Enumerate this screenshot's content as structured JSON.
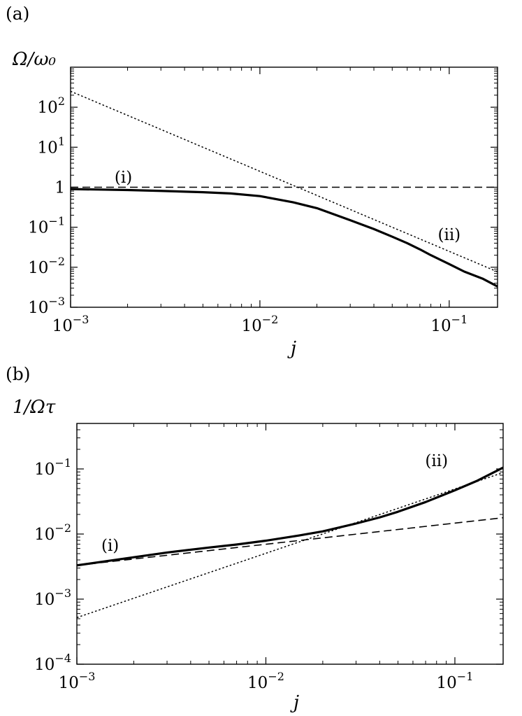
{
  "chart_data": [
    {
      "panel_label": "(a)",
      "type": "line",
      "ylabel": "Ω/ω₀",
      "xlabel": "j",
      "x_scale": "log",
      "y_scale": "log",
      "xlim": [
        0.001,
        0.18
      ],
      "ylim": [
        0.001,
        1000
      ],
      "grid": false,
      "x_ticks": [
        {
          "value": 0.001,
          "base": "10",
          "exp": "−3"
        },
        {
          "value": 0.01,
          "base": "10",
          "exp": "−2"
        },
        {
          "value": 0.1,
          "base": "10",
          "exp": "−1"
        }
      ],
      "y_ticks": [
        {
          "value": 0.001,
          "base": "10",
          "exp": "−3"
        },
        {
          "value": 0.01,
          "base": "10",
          "exp": "−2"
        },
        {
          "value": 0.1,
          "base": "10",
          "exp": "−1"
        },
        {
          "value": 1,
          "base": "1",
          "exp": ""
        },
        {
          "value": 10,
          "base": "10",
          "exp": "1"
        },
        {
          "value": 100,
          "base": "10",
          "exp": "2"
        }
      ],
      "annotations": [
        {
          "text": "(i)",
          "x": 0.0019,
          "y": 1.3
        },
        {
          "text": "(ii)",
          "x": 0.1,
          "y": 0.048
        }
      ],
      "series": [
        {
          "style": "solid",
          "x": [
            0.001,
            0.0015,
            0.002,
            0.003,
            0.005,
            0.007,
            0.01,
            0.015,
            0.02,
            0.03,
            0.04,
            0.05,
            0.06,
            0.07,
            0.08,
            0.1,
            0.12,
            0.15,
            0.18
          ],
          "y": [
            0.9,
            0.87,
            0.85,
            0.81,
            0.75,
            0.7,
            0.6,
            0.42,
            0.3,
            0.15,
            0.09,
            0.058,
            0.04,
            0.028,
            0.02,
            0.012,
            0.0078,
            0.0052,
            0.0033
          ]
        },
        {
          "style": "dashed",
          "x": [
            0.001,
            0.18
          ],
          "y": [
            1,
            1
          ]
        },
        {
          "style": "dotted",
          "x": [
            0.001,
            0.18
          ],
          "y": [
            250,
            0.0077
          ]
        }
      ]
    },
    {
      "panel_label": "(b)",
      "type": "line",
      "ylabel": "1/Ωτ",
      "xlabel": "j",
      "x_scale": "log",
      "y_scale": "log",
      "xlim": [
        0.001,
        0.18
      ],
      "ylim": [
        0.0001,
        0.5
      ],
      "grid": false,
      "x_ticks": [
        {
          "value": 0.001,
          "base": "10",
          "exp": "−3"
        },
        {
          "value": 0.01,
          "base": "10",
          "exp": "−2"
        },
        {
          "value": 0.1,
          "base": "10",
          "exp": "−1"
        }
      ],
      "y_ticks": [
        {
          "value": 0.0001,
          "base": "10",
          "exp": "−4"
        },
        {
          "value": 0.001,
          "base": "10",
          "exp": "−3"
        },
        {
          "value": 0.01,
          "base": "10",
          "exp": "−2"
        },
        {
          "value": 0.1,
          "base": "10",
          "exp": "−1"
        }
      ],
      "annotations": [
        {
          "text": "(i)",
          "x": 0.0015,
          "y": 0.0055
        },
        {
          "text": "(ii)",
          "x": 0.08,
          "y": 0.11
        }
      ],
      "series": [
        {
          "style": "solid",
          "x": [
            0.001,
            0.002,
            0.003,
            0.005,
            0.007,
            0.01,
            0.015,
            0.02,
            0.03,
            0.04,
            0.05,
            0.07,
            0.1,
            0.13,
            0.18
          ],
          "y": [
            0.0033,
            0.0044,
            0.0052,
            0.0062,
            0.0069,
            0.0079,
            0.0095,
            0.011,
            0.0145,
            0.018,
            0.022,
            0.031,
            0.047,
            0.065,
            0.105
          ]
        },
        {
          "style": "dashed",
          "x": [
            0.001,
            0.18
          ],
          "y": [
            0.0033,
            0.0178
          ]
        },
        {
          "style": "dotted",
          "x": [
            0.001,
            0.18
          ],
          "y": [
            0.00052,
            0.088
          ]
        }
      ]
    }
  ]
}
